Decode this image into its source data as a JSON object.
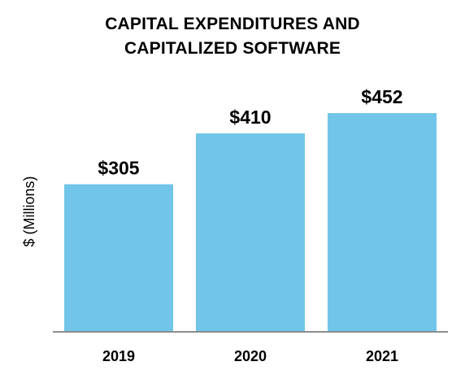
{
  "chart_data": {
    "type": "bar",
    "title": "CAPITAL EXPENDITURES AND CAPITALIZED SOFTWARE",
    "title_lines": [
      "CAPITAL EXPENDITURES AND",
      "CAPITALIZED SOFTWARE"
    ],
    "xlabel": "",
    "ylabel": "$ (Millions)",
    "categories": [
      "2019",
      "2020",
      "2021"
    ],
    "values": [
      305,
      410,
      452
    ],
    "data_labels": [
      "$305",
      "$410",
      "$452"
    ],
    "ylim": [
      0,
      500
    ],
    "grid": false,
    "legend": "none",
    "bar_color": "#71C5E8",
    "axis_color": "#8c8c8c"
  }
}
